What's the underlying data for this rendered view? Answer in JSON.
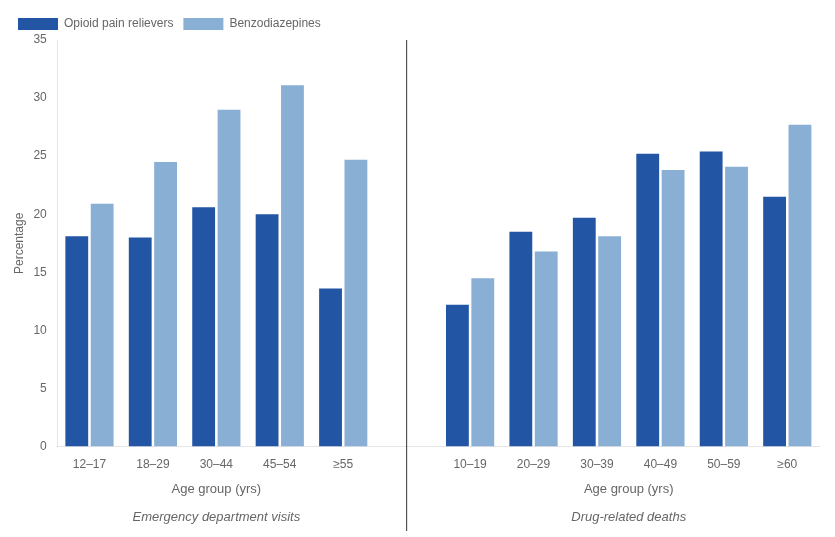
{
  "chart_data": {
    "type": "bar",
    "categories": [
      "12–17",
      "18–29",
      "30–44",
      "45–54",
      "≥55",
      null,
      "10–19",
      "20–29",
      "30–39",
      "40–49",
      "50–59",
      "≥60"
    ],
    "series": [
      {
        "name": "Opioid pain relievers",
        "color": "#2255a4",
        "values": [
          18.1,
          18.0,
          20.6,
          20.0,
          13.6,
          null,
          12.2,
          18.5,
          19.7,
          25.2,
          25.4,
          21.5
        ]
      },
      {
        "name": "Benzodiazepines",
        "color": "#8aafd4",
        "values": [
          20.9,
          24.5,
          29.0,
          31.1,
          24.7,
          null,
          14.5,
          16.8,
          18.1,
          23.8,
          24.1,
          27.7
        ]
      }
    ],
    "ylabel": "Percentage",
    "ylim": [
      0,
      35
    ],
    "yticks": [
      0,
      5,
      10,
      15,
      20,
      25,
      30,
      35
    ],
    "grid": false,
    "legend": "upper left",
    "sections": [
      {
        "label": "Emergency department visits",
        "xlabel": "Age group (yrs)",
        "categories": [
          "12–17",
          "18–29",
          "30–44",
          "45–54",
          "≥55"
        ]
      },
      {
        "label": "Drug-related deaths",
        "xlabel": "Age group (yrs)",
        "categories": [
          "10–19",
          "20–29",
          "30–39",
          "40–49",
          "50–59",
          "≥60"
        ]
      }
    ]
  }
}
